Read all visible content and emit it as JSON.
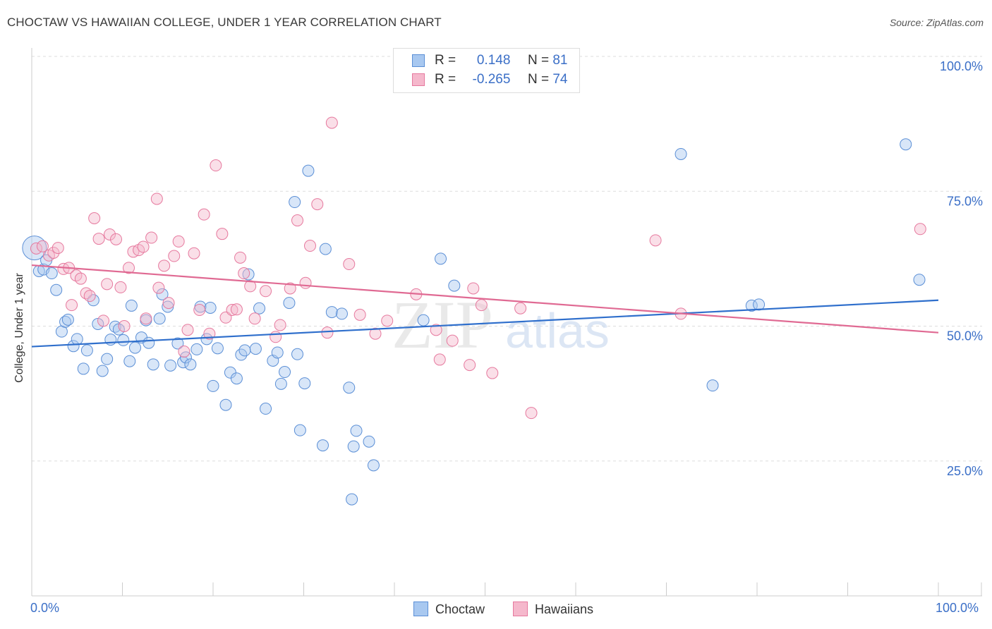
{
  "header": {
    "title": "CHOCTAW VS HAWAIIAN COLLEGE, UNDER 1 YEAR CORRELATION CHART",
    "source": "Source: ZipAtlas.com"
  },
  "legend": {
    "rows": [
      {
        "r_label": "R =",
        "r_value": "0.148",
        "n_label": "N =",
        "n_value": "81",
        "color": "#a8c8f0",
        "stroke": "#5b8fd6"
      },
      {
        "r_label": "R =",
        "r_value": "-0.265",
        "n_label": "N =",
        "n_value": "74",
        "color": "#f5b8cc",
        "stroke": "#e6799e"
      }
    ]
  },
  "chart_data": {
    "type": "scatter",
    "title": "CHOCTAW VS HAWAIIAN COLLEGE, UNDER 1 YEAR CORRELATION CHART",
    "xlabel": "",
    "ylabel": "College, Under 1 year",
    "xlim": [
      0,
      100
    ],
    "ylim": [
      0,
      100
    ],
    "x_ticks": [
      "0.0%",
      "100.0%"
    ],
    "y_ticks": [
      {
        "value": 25,
        "label": "25.0%"
      },
      {
        "value": 50,
        "label": "50.0%"
      },
      {
        "value": 75,
        "label": "75.0%"
      },
      {
        "value": 100,
        "label": "100.0%"
      }
    ],
    "grid": true,
    "legend_position": "top-center",
    "watermark": "ZIPatlas",
    "series": [
      {
        "name": "Choctaw",
        "color": "#a8c8f0",
        "stroke": "#5b8fd6",
        "line_color": "#2f6fcc",
        "trend": {
          "x": [
            0,
            100
          ],
          "y": [
            46.2,
            54.8
          ]
        },
        "points": [
          [
            0.3,
            64.5
          ],
          [
            0.8,
            60.2
          ],
          [
            1.3,
            60.5
          ],
          [
            1.6,
            62.2
          ],
          [
            2.2,
            59.8
          ],
          [
            2.7,
            56.7
          ],
          [
            3.3,
            49.0
          ],
          [
            3.7,
            50.8
          ],
          [
            4.0,
            51.2
          ],
          [
            4.6,
            46.3
          ],
          [
            5.0,
            47.6
          ],
          [
            5.7,
            42.1
          ],
          [
            6.1,
            45.5
          ],
          [
            6.8,
            54.8
          ],
          [
            7.3,
            50.4
          ],
          [
            7.8,
            41.7
          ],
          [
            8.3,
            43.9
          ],
          [
            8.7,
            47.5
          ],
          [
            9.2,
            49.9
          ],
          [
            9.6,
            49.4
          ],
          [
            10.1,
            47.4
          ],
          [
            10.8,
            43.5
          ],
          [
            11.0,
            53.8
          ],
          [
            11.4,
            46.0
          ],
          [
            12.1,
            47.9
          ],
          [
            12.6,
            51.1
          ],
          [
            12.9,
            46.9
          ],
          [
            13.4,
            42.9
          ],
          [
            14.1,
            51.4
          ],
          [
            14.4,
            55.9
          ],
          [
            15.0,
            53.6
          ],
          [
            15.3,
            42.7
          ],
          [
            16.1,
            46.8
          ],
          [
            16.7,
            43.3
          ],
          [
            17.0,
            44.2
          ],
          [
            17.5,
            42.9
          ],
          [
            18.2,
            45.7
          ],
          [
            18.6,
            53.6
          ],
          [
            19.3,
            47.6
          ],
          [
            19.7,
            53.4
          ],
          [
            20.0,
            38.9
          ],
          [
            20.5,
            45.9
          ],
          [
            21.4,
            35.4
          ],
          [
            21.9,
            41.4
          ],
          [
            22.6,
            40.3
          ],
          [
            23.1,
            44.7
          ],
          [
            23.5,
            45.5
          ],
          [
            23.9,
            59.6
          ],
          [
            24.7,
            45.8
          ],
          [
            25.1,
            53.3
          ],
          [
            25.8,
            34.7
          ],
          [
            26.6,
            43.6
          ],
          [
            27.1,
            45.1
          ],
          [
            27.5,
            39.3
          ],
          [
            27.9,
            41.5
          ],
          [
            28.4,
            54.3
          ],
          [
            29.0,
            73.0
          ],
          [
            29.3,
            44.8
          ],
          [
            29.6,
            30.7
          ],
          [
            30.1,
            39.4
          ],
          [
            30.5,
            78.8
          ],
          [
            32.1,
            27.9
          ],
          [
            32.4,
            64.3
          ],
          [
            33.1,
            52.6
          ],
          [
            34.2,
            52.3
          ],
          [
            35.0,
            38.6
          ],
          [
            35.5,
            27.7
          ],
          [
            35.8,
            30.6
          ],
          [
            37.2,
            28.6
          ],
          [
            37.7,
            24.2
          ],
          [
            35.3,
            17.9
          ],
          [
            43.2,
            51.1
          ],
          [
            45.1,
            62.5
          ],
          [
            46.6,
            57.5
          ],
          [
            71.6,
            81.9
          ],
          [
            75.1,
            39.0
          ],
          [
            79.4,
            53.8
          ],
          [
            80.2,
            54.0
          ],
          [
            96.4,
            83.7
          ],
          [
            97.9,
            58.6
          ]
        ]
      },
      {
        "name": "Hawaiians",
        "color": "#f5b8cc",
        "stroke": "#e6799e",
        "line_color": "#e06a93",
        "trend": {
          "x": [
            0,
            100
          ],
          "y": [
            61.3,
            48.8
          ]
        },
        "points": [
          [
            0.5,
            64.4
          ],
          [
            1.2,
            64.8
          ],
          [
            1.9,
            63.1
          ],
          [
            2.4,
            63.6
          ],
          [
            2.9,
            64.5
          ],
          [
            3.5,
            60.6
          ],
          [
            4.1,
            60.8
          ],
          [
            4.4,
            53.9
          ],
          [
            4.9,
            59.4
          ],
          [
            5.4,
            58.8
          ],
          [
            6.0,
            56.1
          ],
          [
            6.4,
            55.6
          ],
          [
            6.9,
            70.0
          ],
          [
            7.4,
            66.2
          ],
          [
            7.9,
            51.0
          ],
          [
            8.3,
            57.8
          ],
          [
            8.6,
            67.0
          ],
          [
            9.3,
            66.1
          ],
          [
            9.8,
            57.2
          ],
          [
            10.2,
            50.0
          ],
          [
            10.7,
            60.8
          ],
          [
            11.2,
            63.8
          ],
          [
            11.8,
            64.1
          ],
          [
            12.3,
            64.7
          ],
          [
            12.6,
            51.4
          ],
          [
            13.2,
            66.4
          ],
          [
            13.8,
            73.6
          ],
          [
            14.0,
            57.1
          ],
          [
            14.6,
            61.2
          ],
          [
            15.1,
            54.3
          ],
          [
            15.7,
            63.0
          ],
          [
            16.2,
            65.7
          ],
          [
            16.8,
            45.3
          ],
          [
            17.2,
            49.3
          ],
          [
            17.9,
            63.5
          ],
          [
            18.5,
            53.0
          ],
          [
            19.0,
            70.7
          ],
          [
            19.6,
            48.6
          ],
          [
            20.3,
            79.8
          ],
          [
            21.0,
            67.1
          ],
          [
            21.4,
            51.6
          ],
          [
            22.1,
            53.0
          ],
          [
            22.6,
            53.1
          ],
          [
            23.0,
            62.7
          ],
          [
            23.4,
            59.8
          ],
          [
            24.1,
            57.4
          ],
          [
            24.6,
            51.4
          ],
          [
            25.8,
            56.5
          ],
          [
            26.9,
            48.0
          ],
          [
            27.4,
            50.2
          ],
          [
            28.5,
            57.0
          ],
          [
            29.3,
            69.6
          ],
          [
            30.2,
            58.0
          ],
          [
            30.7,
            64.9
          ],
          [
            31.5,
            72.6
          ],
          [
            32.6,
            48.8
          ],
          [
            33.1,
            87.7
          ],
          [
            35.0,
            61.5
          ],
          [
            36.2,
            52.1
          ],
          [
            37.9,
            48.6
          ],
          [
            39.2,
            51.0
          ],
          [
            42.4,
            55.9
          ],
          [
            44.6,
            49.3
          ],
          [
            45.0,
            43.8
          ],
          [
            46.4,
            47.3
          ],
          [
            48.3,
            42.8
          ],
          [
            48.7,
            57.0
          ],
          [
            49.6,
            53.9
          ],
          [
            50.8,
            41.3
          ],
          [
            53.9,
            53.3
          ],
          [
            55.1,
            33.9
          ],
          [
            68.8,
            65.9
          ],
          [
            71.6,
            52.3
          ],
          [
            98.0,
            68.0
          ]
        ]
      }
    ]
  }
}
